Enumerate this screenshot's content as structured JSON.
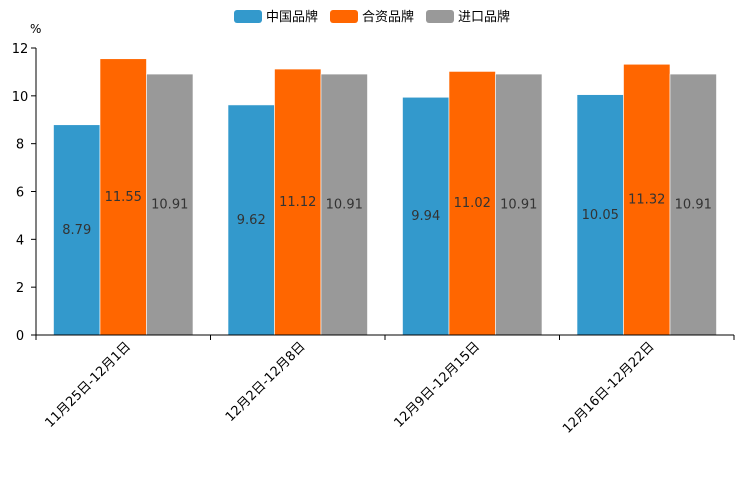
{
  "chart_data": {
    "type": "bar",
    "unit": "%",
    "categories": [
      "11月25日-12月1日",
      "12月2日-12月8日",
      "12月9日-12月15日",
      "12月16日-12月22日"
    ],
    "series": [
      {
        "name": "中国品牌",
        "color": "#3399cc",
        "values": [
          8.79,
          9.62,
          9.94,
          10.05
        ]
      },
      {
        "name": "合资品牌",
        "color": "#ff6600",
        "values": [
          11.55,
          11.12,
          11.02,
          11.32
        ]
      },
      {
        "name": "进口品牌",
        "color": "#999999",
        "values": [
          10.91,
          10.91,
          10.91,
          10.91
        ]
      }
    ],
    "ylim": [
      0,
      12
    ],
    "yticks": [
      0,
      2,
      4,
      6,
      8,
      10,
      12
    ],
    "legend_position": "top-center",
    "grid": false
  }
}
